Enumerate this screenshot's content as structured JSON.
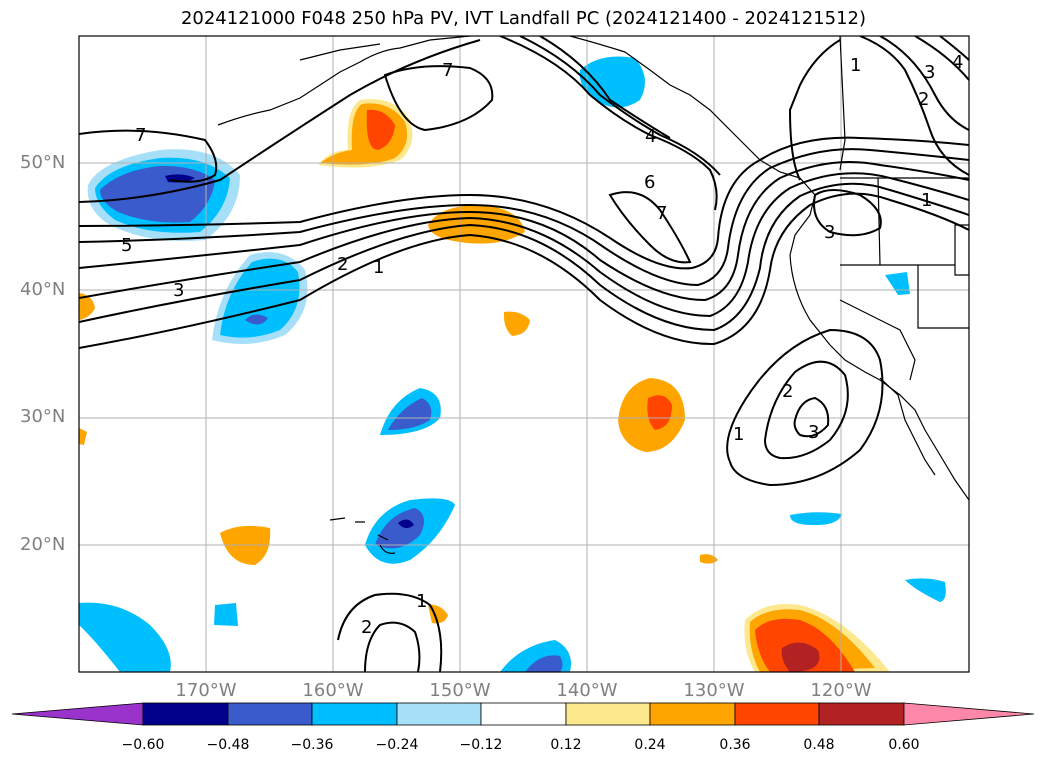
{
  "title": "2024121000 F048 250 hPa PV, IVT Landfall PC (2024121400 - 2024121512)",
  "lat_labels": [
    "50°N",
    "40°N",
    "30°N",
    "20°N"
  ],
  "lon_labels": [
    "170°W",
    "160°W",
    "150°W",
    "140°W",
    "130°W",
    "120°W"
  ],
  "contour_labels": [
    "7",
    "7",
    "5",
    "3",
    "2",
    "1",
    "4",
    "6",
    "7",
    "1",
    "3",
    "2",
    "4",
    "1",
    "3",
    "2",
    "1",
    "3",
    "1",
    "2"
  ],
  "colorbar": {
    "ticks": [
      "−0.60",
      "−0.48",
      "−0.36",
      "−0.24",
      "−0.12",
      "0.12",
      "0.24",
      "0.36",
      "0.48",
      "0.60"
    ],
    "colors": [
      "#9933cc",
      "#00008b",
      "#3a5bcc",
      "#00bfff",
      "#a8dff8",
      "#ffffff",
      "#fde88e",
      "#ffa500",
      "#ff4500",
      "#b22222",
      "#ff88aa"
    ]
  }
}
